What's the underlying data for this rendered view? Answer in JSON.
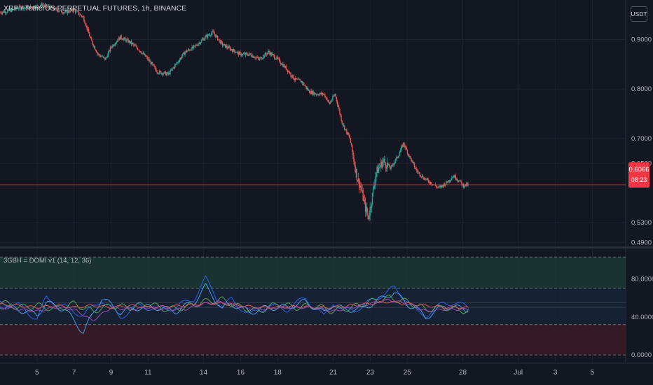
{
  "header": {
    "symbol_title": "XRP / TetherUS PERPETUAL FUTURES, 1h, BINANCE",
    "indicator_title": "3GBH = DOMI v1 (14, 12, 36)",
    "quote_unit": "USDT"
  },
  "last_price": {
    "value": "0.6066",
    "countdown": "08:23",
    "color": "#f23645"
  },
  "colors": {
    "background": "#131722",
    "up_candle": "#26a69a",
    "down_candle": "#ef5350",
    "grid": "#1e222d",
    "upper_zone": "#1b3a33",
    "lower_zone": "#3a1a26",
    "mid_zone": "#172435"
  },
  "chart_data": [
    {
      "type": "candlestick",
      "panel": "price",
      "interval": "1h",
      "y_ticks": [
        "0.9000",
        "0.8000",
        "0.7000",
        "0.6500",
        "0.6066",
        "0.5300",
        "0.4900"
      ],
      "y_tick_values": [
        0.9,
        0.8,
        0.7,
        0.65,
        0.6066,
        0.53,
        0.49
      ],
      "x_ticks": [
        "5",
        "7",
        "9",
        "11",
        "14",
        "16",
        "18",
        "21",
        "23",
        "25",
        "28",
        "Jul",
        "3",
        "5"
      ],
      "x_tick_positions": [
        2.5,
        4.5,
        6.5,
        8.5,
        11.5,
        13.5,
        15.5,
        18.5,
        20.5,
        22.5,
        25.5,
        28.5,
        30.5,
        32.5
      ],
      "x_range": [
        0.5,
        34.3
      ],
      "y_range": [
        0.482,
        0.98
      ],
      "price_path": {
        "x": [
          0.5,
          1.0,
          1.6,
          2.2,
          2.8,
          3.4,
          4.0,
          4.5,
          5.0,
          5.4,
          5.8,
          6.2,
          6.5,
          7.0,
          7.5,
          8.0,
          8.5,
          9.0,
          9.6,
          10.0,
          10.5,
          11.0,
          11.6,
          12.0,
          12.5,
          13.0,
          13.5,
          14.0,
          14.5,
          15.0,
          15.5,
          16.0,
          16.4,
          16.8,
          17.2,
          17.6,
          18.0,
          18.3,
          18.6,
          19.0,
          19.4,
          19.6,
          19.8,
          20.0,
          20.2,
          20.4,
          20.6,
          20.8,
          21.2,
          21.6,
          22.0,
          22.3,
          22.6,
          23.0,
          23.4,
          23.8,
          24.2,
          24.6,
          25.0,
          25.3,
          25.5,
          25.8
        ],
        "y": [
          0.955,
          0.958,
          0.965,
          0.965,
          0.97,
          0.962,
          0.955,
          0.96,
          0.945,
          0.9,
          0.87,
          0.86,
          0.885,
          0.905,
          0.895,
          0.88,
          0.86,
          0.835,
          0.83,
          0.85,
          0.875,
          0.885,
          0.905,
          0.915,
          0.89,
          0.88,
          0.87,
          0.87,
          0.86,
          0.875,
          0.86,
          0.84,
          0.82,
          0.815,
          0.795,
          0.79,
          0.79,
          0.77,
          0.79,
          0.73,
          0.7,
          0.66,
          0.62,
          0.6,
          0.565,
          0.54,
          0.58,
          0.63,
          0.655,
          0.64,
          0.665,
          0.69,
          0.665,
          0.635,
          0.62,
          0.61,
          0.6,
          0.61,
          0.625,
          0.615,
          0.605,
          0.6066
        ]
      },
      "last_price": 0.6066
    },
    {
      "type": "line",
      "panel": "oscillator",
      "y_ticks": [
        "80.0000",
        "40.0000",
        "0.0000"
      ],
      "y_tick_values": [
        80,
        40,
        0
      ],
      "y_range": [
        -8,
        112
      ],
      "levels": {
        "upper_band": [
          70,
          103
        ],
        "lower_band": [
          0,
          32
        ],
        "guide_lines": [
          50,
          55
        ]
      },
      "series": [
        {
          "color": "#2962ff",
          "x": [
            0.5,
            1.5,
            2.5,
            3.0,
            4.0,
            5.0,
            6.0,
            7.0,
            8.0,
            9.0,
            10.0,
            11.0,
            11.6,
            12.0,
            12.5,
            13.0,
            14.0,
            15.0,
            16.0,
            17.0,
            18.0,
            18.5,
            19.0,
            20.0,
            21.0,
            21.8,
            22.0,
            22.5,
            23.0,
            23.5,
            24.0,
            24.5,
            25.0,
            25.8
          ],
          "y": [
            55,
            52,
            38,
            60,
            50,
            42,
            58,
            40,
            52,
            48,
            50,
            60,
            80,
            68,
            50,
            58,
            42,
            52,
            48,
            60,
            40,
            56,
            46,
            50,
            62,
            70,
            66,
            58,
            45,
            42,
            48,
            55,
            55,
            50
          ]
        },
        {
          "color": "#42a5f5",
          "x": [
            0.5,
            1.5,
            2.5,
            3.0,
            4.0,
            5.0,
            6.0,
            7.0,
            8.0,
            9.0,
            10.0,
            11.0,
            11.6,
            12.0,
            12.5,
            13.0,
            14.0,
            15.0,
            16.0,
            17.0,
            18.0,
            18.5,
            19.0,
            20.0,
            21.0,
            21.8,
            22.0,
            22.5,
            23.0,
            23.5,
            24.0,
            24.5,
            25.0,
            25.8
          ],
          "y": [
            52,
            48,
            42,
            55,
            48,
            24,
            60,
            45,
            50,
            50,
            46,
            56,
            72,
            62,
            48,
            54,
            45,
            50,
            50,
            56,
            44,
            54,
            48,
            48,
            58,
            66,
            62,
            54,
            48,
            40,
            45,
            52,
            50,
            48
          ]
        },
        {
          "color": "#4caf50",
          "x": [
            0.5,
            1.5,
            2.5,
            3.5,
            4.5,
            5.5,
            6.5,
            7.5,
            8.5,
            9.5,
            10.5,
            11.5,
            12.5,
            13.5,
            14.5,
            15.5,
            16.5,
            17.5,
            18.5,
            19.5,
            20.5,
            21.5,
            22.5,
            23.5,
            24.5,
            25.8
          ],
          "y": [
            56,
            50,
            52,
            48,
            54,
            46,
            52,
            50,
            54,
            48,
            50,
            56,
            58,
            50,
            46,
            54,
            50,
            52,
            46,
            50,
            56,
            60,
            56,
            48,
            50,
            46
          ]
        },
        {
          "color": "#ef5350",
          "x": [
            0.5,
            1.5,
            2.5,
            3.5,
            4.5,
            5.5,
            6.5,
            7.5,
            8.5,
            9.5,
            10.5,
            11.5,
            12.5,
            13.5,
            14.5,
            15.5,
            16.5,
            17.5,
            18.5,
            19.5,
            20.5,
            21.5,
            22.5,
            23.5,
            24.5,
            25.8
          ],
          "y": [
            53,
            52,
            50,
            52,
            50,
            52,
            50,
            52,
            50,
            51,
            52,
            54,
            54,
            52,
            50,
            50,
            51,
            50,
            50,
            52,
            54,
            56,
            54,
            52,
            50,
            50
          ]
        },
        {
          "color": "#ab47bc",
          "x": [
            0.5,
            1.5,
            2.5,
            3.5,
            4.5,
            5.5,
            6.5,
            7.5,
            8.5,
            9.5,
            10.5,
            11.5,
            12.5,
            13.5,
            14.5,
            15.5,
            16.5,
            17.5,
            18.5,
            19.5,
            20.5,
            21.5,
            22.5,
            23.5,
            24.5,
            25.8
          ],
          "y": [
            50,
            48,
            46,
            50,
            48,
            36,
            50,
            48,
            50,
            48,
            48,
            54,
            56,
            50,
            48,
            50,
            50,
            50,
            46,
            50,
            54,
            58,
            54,
            46,
            48,
            48
          ]
        }
      ]
    }
  ]
}
